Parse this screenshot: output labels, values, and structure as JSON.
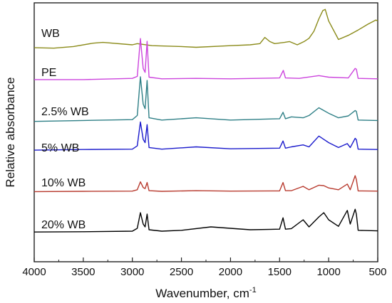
{
  "chart_data": {
    "type": "line",
    "xlabel": "Wavenumber, cm",
    "xlabel_sup": "-1",
    "ylabel": "Relative absorbance",
    "xlim": [
      4000,
      500
    ],
    "x_reversed": true,
    "y_ticks_shown": false,
    "legend_placement": "inline labels at left of each trace",
    "x_ticks": [
      4000,
      3500,
      3000,
      2500,
      2000,
      1500,
      1000,
      500
    ],
    "series": [
      {
        "name": "WB",
        "color": "#8b8b1a",
        "offset": 5,
        "points": [
          [
            4000,
            0.05
          ],
          [
            3800,
            0.04
          ],
          [
            3600,
            0.08
          ],
          [
            3400,
            0.16
          ],
          [
            3300,
            0.18
          ],
          [
            3000,
            0.12
          ],
          [
            2950,
            0.15
          ],
          [
            2800,
            0.1
          ],
          [
            2500,
            0.08
          ],
          [
            2350,
            0.06
          ],
          [
            2000,
            0.1
          ],
          [
            1800,
            0.12
          ],
          [
            1700,
            0.15
          ],
          [
            1650,
            0.3
          ],
          [
            1600,
            0.2
          ],
          [
            1550,
            0.15
          ],
          [
            1450,
            0.18
          ],
          [
            1400,
            0.2
          ],
          [
            1320,
            0.12
          ],
          [
            1250,
            0.2
          ],
          [
            1200,
            0.28
          ],
          [
            1150,
            0.45
          ],
          [
            1100,
            0.75
          ],
          [
            1060,
            0.95
          ],
          [
            1035,
            0.98
          ],
          [
            1000,
            0.7
          ],
          [
            900,
            0.25
          ],
          [
            800,
            0.35
          ],
          [
            700,
            0.48
          ],
          [
            600,
            0.62
          ],
          [
            520,
            0.72
          ],
          [
            500,
            0.7
          ]
        ]
      },
      {
        "name": "PE",
        "color": "#cc44dd",
        "offset": 4,
        "points": [
          [
            4000,
            0.02
          ],
          [
            3500,
            0.02
          ],
          [
            3000,
            0.05
          ],
          [
            2950,
            0.1
          ],
          [
            2918,
            1.05
          ],
          [
            2890,
            0.3
          ],
          [
            2870,
            0.2
          ],
          [
            2850,
            0.98
          ],
          [
            2830,
            0.08
          ],
          [
            2700,
            0.04
          ],
          [
            2350,
            0.05
          ],
          [
            2000,
            0.04
          ],
          [
            1500,
            0.06
          ],
          [
            1472,
            0.2
          ],
          [
            1462,
            0.25
          ],
          [
            1440,
            0.06
          ],
          [
            1300,
            0.05
          ],
          [
            1100,
            0.12
          ],
          [
            1000,
            0.08
          ],
          [
            800,
            0.06
          ],
          [
            730,
            0.3
          ],
          [
            718,
            0.28
          ],
          [
            700,
            0.05
          ],
          [
            500,
            0.04
          ]
        ]
      },
      {
        "name": "2.5% WB",
        "color": "#2e7f86",
        "offset": 3,
        "points": [
          [
            4000,
            0.02
          ],
          [
            3500,
            0.04
          ],
          [
            3000,
            0.06
          ],
          [
            2950,
            0.15
          ],
          [
            2918,
            1.0
          ],
          [
            2890,
            0.4
          ],
          [
            2870,
            0.3
          ],
          [
            2850,
            0.92
          ],
          [
            2830,
            0.1
          ],
          [
            2700,
            0.05
          ],
          [
            2350,
            0.1
          ],
          [
            2000,
            0.05
          ],
          [
            1500,
            0.08
          ],
          [
            1465,
            0.22
          ],
          [
            1440,
            0.08
          ],
          [
            1380,
            0.12
          ],
          [
            1260,
            0.1
          ],
          [
            1200,
            0.15
          ],
          [
            1100,
            0.32
          ],
          [
            1050,
            0.26
          ],
          [
            1000,
            0.2
          ],
          [
            900,
            0.1
          ],
          [
            800,
            0.14
          ],
          [
            730,
            0.26
          ],
          [
            718,
            0.24
          ],
          [
            700,
            0.05
          ],
          [
            500,
            0.04
          ]
        ]
      },
      {
        "name": "5% WB",
        "color": "#1a1acc",
        "offset": 2,
        "points": [
          [
            4000,
            0.02
          ],
          [
            3500,
            0.04
          ],
          [
            3000,
            0.05
          ],
          [
            2950,
            0.15
          ],
          [
            2918,
            0.88
          ],
          [
            2890,
            0.35
          ],
          [
            2870,
            0.25
          ],
          [
            2850,
            0.8
          ],
          [
            2830,
            0.1
          ],
          [
            2700,
            0.05
          ],
          [
            2350,
            0.12
          ],
          [
            2000,
            0.06
          ],
          [
            1500,
            0.08
          ],
          [
            1465,
            0.3
          ],
          [
            1440,
            0.08
          ],
          [
            1380,
            0.12
          ],
          [
            1260,
            0.18
          ],
          [
            1200,
            0.12
          ],
          [
            1100,
            0.45
          ],
          [
            1050,
            0.35
          ],
          [
            1000,
            0.25
          ],
          [
            900,
            0.1
          ],
          [
            810,
            0.22
          ],
          [
            780,
            0.1
          ],
          [
            730,
            0.38
          ],
          [
            718,
            0.34
          ],
          [
            700,
            0.05
          ],
          [
            500,
            0.04
          ]
        ]
      },
      {
        "name": "10% WB",
        "color": "#b83a2e",
        "offset": 1,
        "points": [
          [
            4000,
            0.02
          ],
          [
            3500,
            0.03
          ],
          [
            3000,
            0.04
          ],
          [
            2950,
            0.1
          ],
          [
            2918,
            0.45
          ],
          [
            2890,
            0.2
          ],
          [
            2870,
            0.15
          ],
          [
            2850,
            0.42
          ],
          [
            2830,
            0.06
          ],
          [
            2700,
            0.03
          ],
          [
            2350,
            0.06
          ],
          [
            2000,
            0.04
          ],
          [
            1500,
            0.05
          ],
          [
            1465,
            0.42
          ],
          [
            1440,
            0.06
          ],
          [
            1380,
            0.06
          ],
          [
            1260,
            0.25
          ],
          [
            1200,
            0.1
          ],
          [
            1100,
            0.3
          ],
          [
            1050,
            0.28
          ],
          [
            1000,
            0.18
          ],
          [
            900,
            0.1
          ],
          [
            810,
            0.35
          ],
          [
            780,
            0.1
          ],
          [
            730,
            0.72
          ],
          [
            718,
            0.55
          ],
          [
            700,
            0.05
          ],
          [
            500,
            0.04
          ]
        ]
      },
      {
        "name": "20% WB",
        "color": "#000000",
        "offset": 0,
        "points": [
          [
            4000,
            0.02
          ],
          [
            3500,
            0.03
          ],
          [
            3000,
            0.05
          ],
          [
            2950,
            0.15
          ],
          [
            2918,
            0.7
          ],
          [
            2890,
            0.3
          ],
          [
            2870,
            0.2
          ],
          [
            2850,
            0.65
          ],
          [
            2830,
            0.1
          ],
          [
            2700,
            0.05
          ],
          [
            2500,
            0.08
          ],
          [
            2200,
            0.2
          ],
          [
            2000,
            0.15
          ],
          [
            1800,
            0.1
          ],
          [
            1500,
            0.12
          ],
          [
            1465,
            0.52
          ],
          [
            1440,
            0.12
          ],
          [
            1380,
            0.14
          ],
          [
            1260,
            0.45
          ],
          [
            1200,
            0.2
          ],
          [
            1100,
            0.55
          ],
          [
            1050,
            0.7
          ],
          [
            1000,
            0.45
          ],
          [
            900,
            0.22
          ],
          [
            810,
            0.78
          ],
          [
            780,
            0.3
          ],
          [
            730,
            0.82
          ],
          [
            718,
            0.65
          ],
          [
            700,
            0.08
          ],
          [
            500,
            0.06
          ]
        ]
      }
    ]
  }
}
